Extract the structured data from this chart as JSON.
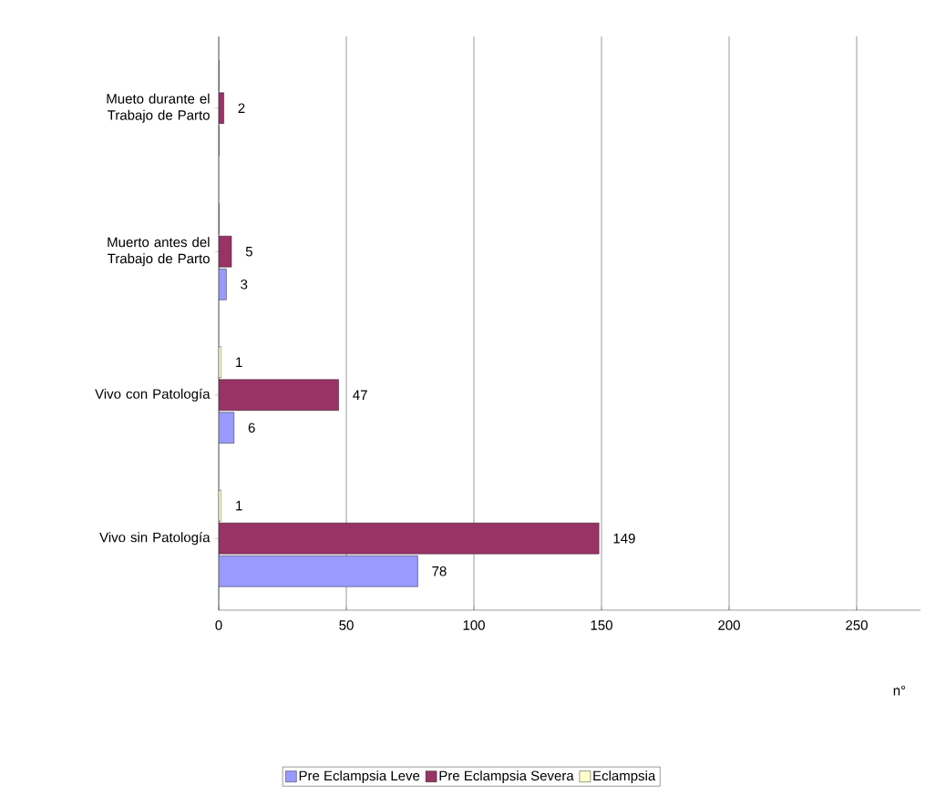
{
  "chart_data": {
    "type": "bar",
    "orientation": "horizontal",
    "categories": [
      "Mueto durante el Trabajo de Parto",
      "Muerto antes del Trabajo de Parto",
      "Vivo con Patología",
      "Vivo sin Patología"
    ],
    "series": [
      {
        "name": "Pre Eclampsia  Leve",
        "color": "#9999ff",
        "values": [
          0,
          3,
          6,
          78
        ],
        "value_labels": [
          null,
          "3",
          "6",
          "78"
        ]
      },
      {
        "name": "Pre Eclampsia  Severa",
        "color": "#993366",
        "values": [
          2,
          5,
          47,
          149
        ],
        "value_labels": [
          "2",
          "5",
          "47",
          "149"
        ]
      },
      {
        "name": "Eclampsia",
        "color": "#ffffcc",
        "values": [
          0,
          0,
          1,
          1
        ],
        "value_labels": [
          null,
          null,
          "1",
          "1"
        ]
      }
    ],
    "xlim": [
      0,
      275
    ],
    "xticks": [
      0,
      50,
      100,
      150,
      200,
      250
    ],
    "xlabel": "n°",
    "grid": "x",
    "legend": "bottom"
  }
}
